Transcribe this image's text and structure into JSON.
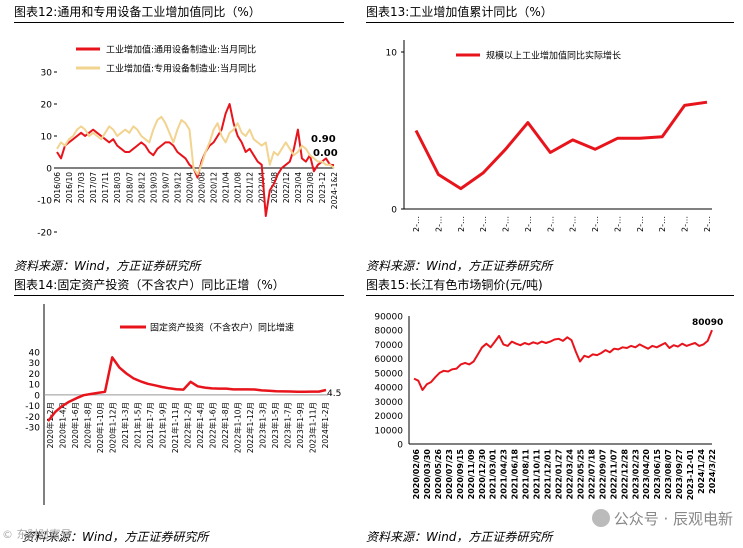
{
  "panels": [
    {
      "title": "图表12:通用和专用设备工业增加值同比（%）",
      "source": "资料来源：Wind，方正证券研究所"
    },
    {
      "title": "图表13:工业增加值累计同比（%）",
      "source": "资料来源：Wind，方正证券研究所"
    },
    {
      "title": "图表14:固定资产投资（不含农户）同比正增（%）",
      "source": "资料来源：Wind，方正证券研究所"
    },
    {
      "title": "图表15:长江有色市场铜价(元/吨)",
      "source": "资料来源：Wind，方正证券研究所"
    }
  ],
  "watermark": {
    "text": "公众号 · 辰观电新",
    "left_text": "© 东财财富号"
  },
  "colors": {
    "red": "#e8141c",
    "tan": "#f2d38f"
  },
  "chart_data": [
    {
      "type": "line",
      "title": "图表12:通用和专用设备工业增加值同比（%）",
      "ylim": [
        -20,
        30
      ],
      "yticks": [
        -20,
        -10,
        0,
        10,
        20,
        30
      ],
      "x_tick_labels": [
        "2016/06",
        "2016/10",
        "2017/03",
        "2017/07",
        "2017/11",
        "2018/03",
        "2018/07",
        "2018/12",
        "2019/03",
        "2019/07",
        "2019/12",
        "2020/04",
        "2020/08",
        "2020/12",
        "2021/04",
        "2021/08",
        "2021/12",
        "2022/04",
        "2022/08",
        "2022/12",
        "2023/04",
        "2023/08",
        "2023-12",
        "2024-1&2"
      ],
      "annotations": [
        "0.90",
        "0.00"
      ],
      "legend_position": "top-left",
      "series": [
        {
          "name": "工业增加值:通用设备制造业:当月同比",
          "color": "#e8141c",
          "values": [
            5,
            3,
            7,
            8,
            9,
            10,
            11,
            10,
            11,
            12,
            11,
            10,
            9,
            8,
            9,
            7,
            6,
            5,
            5,
            6,
            7,
            8,
            7,
            5,
            4,
            6,
            7,
            8,
            8,
            7,
            5,
            4,
            3,
            1,
            0,
            -3,
            2,
            5,
            7,
            8,
            10,
            12,
            17,
            20,
            14,
            10,
            8,
            5,
            6,
            4,
            2,
            1,
            -15,
            -7,
            -5,
            -2,
            0,
            1,
            2,
            6,
            12,
            3,
            2,
            4,
            -1,
            1,
            2,
            3,
            1,
            0.9
          ]
        },
        {
          "name": "工业增加值:专用设备制造业:当月同比",
          "color": "#f2d38f",
          "values": [
            6,
            8,
            7,
            9,
            10,
            12,
            13,
            12,
            10,
            11,
            10,
            9,
            11,
            13,
            12,
            10,
            11,
            12,
            11,
            13,
            12,
            10,
            9,
            8,
            12,
            15,
            16,
            14,
            11,
            8,
            12,
            15,
            14,
            12,
            0,
            -2,
            1,
            5,
            8,
            12,
            14,
            10,
            8,
            11,
            12,
            14,
            11,
            10,
            12,
            9,
            8,
            7,
            8,
            1,
            5,
            4,
            6,
            8,
            6,
            4,
            5,
            7,
            6,
            4,
            3,
            2,
            2,
            1,
            1,
            0
          ]
        }
      ]
    },
    {
      "type": "line",
      "title": "图表13:工业增加值累计同比（%）",
      "ylim": [
        0,
        10
      ],
      "yticks": [
        0,
        10
      ],
      "x_tick_labels": [
        "2-…",
        "2-…",
        "2-…",
        "2-…",
        "2-…",
        "2-…",
        "2-…",
        "2-…",
        "2-…",
        "2-…",
        "2-…",
        "2-…",
        "2-…",
        "2-…"
      ],
      "legend_position": "top-center",
      "series": [
        {
          "name": "规模以上工业增加值同比实际增长",
          "color": "#e8141c",
          "values": [
            5.0,
            2.2,
            1.3,
            2.3,
            3.8,
            5.5,
            3.6,
            4.4,
            3.8,
            4.5,
            4.5,
            4.6,
            6.6,
            6.8
          ]
        }
      ]
    },
    {
      "type": "line",
      "title": "图表14:固定资产投资（不含农户）同比正增（%）",
      "ylim": [
        -30,
        40
      ],
      "yticks": [
        -30,
        -20,
        -10,
        0,
        10,
        20,
        30,
        40
      ],
      "x_tick_labels": [
        "2020年1-2月",
        "2020年1-4月",
        "2020年1-6月",
        "2020年1-8月",
        "2020年1-10月",
        "2020年1-12月",
        "2021年1-3月",
        "2021年1-5月",
        "2021年1-7月",
        "2021年1-9月",
        "2021年1-11月",
        "2022年1-2月",
        "2022年1-4月",
        "2022年1-6月",
        "2022年1-8月",
        "2022年1-10月",
        "2022年1-12月",
        "2023年1-3月",
        "2023年1-5月",
        "2023年1-7月",
        "2023年1-9月",
        "2023年1-11月",
        "2024年1-2月"
      ],
      "annotations": [
        "4.5"
      ],
      "legend_position": "top-center",
      "series": [
        {
          "name": "固定资产投资（不含农户）同比增速",
          "color": "#e8141c",
          "values": [
            -24.5,
            -16.1,
            -10.3,
            -6.3,
            -3.1,
            -0.3,
            0.8,
            1.8,
            2.9,
            35.0,
            25.6,
            19.9,
            15.4,
            12.6,
            10.3,
            8.9,
            7.3,
            6.1,
            5.2,
            4.9,
            12.2,
            8.0,
            6.8,
            6.0,
            5.8,
            5.8,
            5.1,
            5.1,
            5.1,
            5.0,
            4.2,
            3.8,
            3.4,
            3.2,
            3.1,
            2.9,
            2.9,
            3.0,
            3.0,
            4.5
          ]
        }
      ]
    },
    {
      "type": "line",
      "title": "图表15:长江有色市场铜价(元/吨)",
      "ylim": [
        0,
        90000
      ],
      "yticks": [
        0,
        5000,
        10000,
        15000,
        20000,
        25000,
        30000,
        35000,
        40000,
        45000,
        50000,
        55000,
        60000,
        65000,
        70000,
        75000,
        80000,
        85000,
        90000
      ],
      "x_tick_labels": [
        "2020/02/06",
        "2020/03/30",
        "2020/05/26",
        "2020/07/23",
        "2020/09/15",
        "2020/11/09",
        "2020/12/30",
        "2021/03/01",
        "2021/04/23",
        "2021/06/18",
        "2021/08/11",
        "2021/10/11",
        "2021/12/01",
        "2022/01/27",
        "2022/03/24",
        "2022/05/25",
        "2022/07/18",
        "2022/09/07",
        "2022/11/07",
        "2022/12/28",
        "2023/02/23",
        "2023/04/20",
        "2023/06/15",
        "2023/08/07",
        "2023/09/27",
        "2023-12-01",
        "2024/1/24",
        "2024/3/22"
      ],
      "annotations": [
        "80090"
      ],
      "series": [
        {
          "name": "长江有色市场铜价",
          "color": "#e8141c",
          "values": [
            46000,
            44500,
            38000,
            42000,
            43500,
            47000,
            50000,
            51500,
            51000,
            52500,
            53000,
            56000,
            57000,
            56000,
            58000,
            63000,
            68000,
            70500,
            68000,
            72000,
            76000,
            70000,
            69000,
            72000,
            70500,
            69500,
            71000,
            70000,
            71500,
            70500,
            72000,
            71000,
            72000,
            73500,
            74000,
            72500,
            75000,
            73000,
            65000,
            58000,
            62000,
            61000,
            63000,
            62500,
            64000,
            66000,
            64500,
            67000,
            66500,
            68000,
            67500,
            69000,
            68000,
            70000,
            68500,
            67000,
            69000,
            68000,
            69500,
            71000,
            67500,
            69500,
            68500,
            70500,
            69000,
            70000,
            71000,
            69000,
            70000,
            72500,
            80090
          ]
        }
      ]
    }
  ]
}
